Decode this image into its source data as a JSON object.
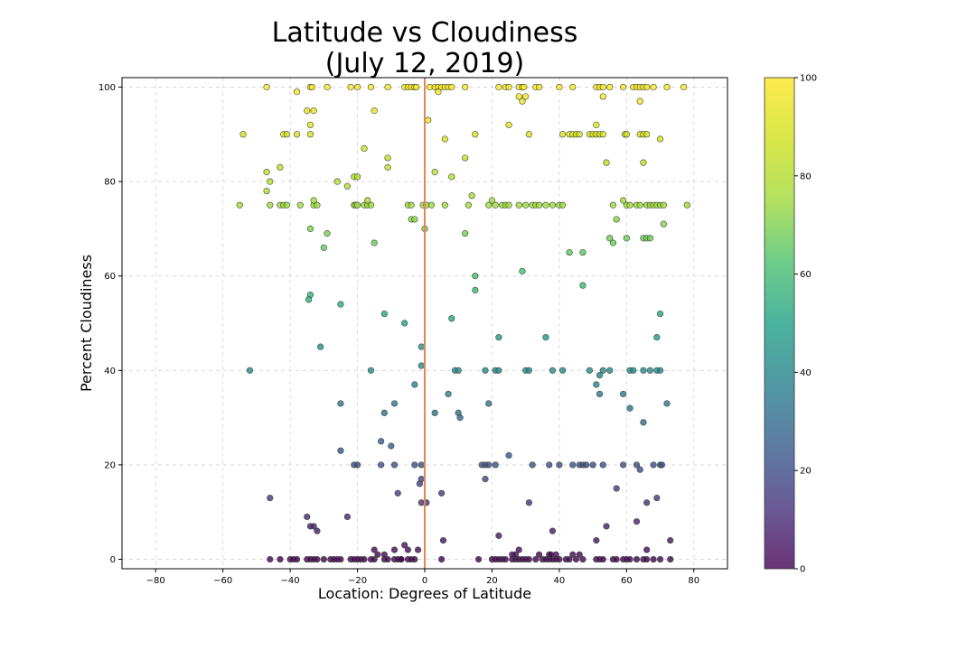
{
  "chart_data": {
    "type": "scatter",
    "title": "Latitude vs Cloudiness",
    "subtitle": "(July 12, 2019)",
    "xlabel": "Location: Degrees of Latitude",
    "ylabel": "Percent Cloudiness",
    "xlim": [
      -90,
      90
    ],
    "ylim": [
      -2,
      102
    ],
    "x_ticks": [
      "−80",
      "−60",
      "−40",
      "−20",
      "0",
      "20",
      "40",
      "60",
      "80"
    ],
    "y_ticks": [
      "0",
      "20",
      "40",
      "60",
      "80",
      "100"
    ],
    "grid": true,
    "reference_line": {
      "x": 0,
      "color": "#e8845a"
    },
    "colormap": "viridis",
    "colorbar": {
      "range": [
        0,
        100
      ],
      "ticks": [
        "0",
        "20",
        "40",
        "60",
        "80",
        "100"
      ],
      "position": "right"
    },
    "points": [
      [
        -47,
        100
      ],
      [
        -38,
        99
      ],
      [
        -34,
        100
      ],
      [
        -33.5,
        100
      ],
      [
        -29,
        100
      ],
      [
        -22,
        100
      ],
      [
        -20,
        100
      ],
      [
        -16,
        100
      ],
      [
        -11,
        100
      ],
      [
        -6,
        100
      ],
      [
        -5,
        100
      ],
      [
        -4,
        100
      ],
      [
        -3,
        100
      ],
      [
        -2.5,
        100
      ],
      [
        1.5,
        100
      ],
      [
        3,
        100
      ],
      [
        4,
        100
      ],
      [
        5,
        100
      ],
      [
        6,
        100
      ],
      [
        7,
        100
      ],
      [
        8,
        100
      ],
      [
        12,
        100
      ],
      [
        22,
        100
      ],
      [
        24,
        100
      ],
      [
        25,
        100
      ],
      [
        28,
        100
      ],
      [
        29,
        100
      ],
      [
        29.5,
        100
      ],
      [
        33,
        100
      ],
      [
        34,
        100
      ],
      [
        40,
        100
      ],
      [
        44,
        100
      ],
      [
        51,
        100
      ],
      [
        52,
        100
      ],
      [
        53,
        100
      ],
      [
        55,
        100
      ],
      [
        59,
        100
      ],
      [
        62,
        100
      ],
      [
        63,
        100
      ],
      [
        64,
        100
      ],
      [
        65,
        100
      ],
      [
        66,
        100
      ],
      [
        68,
        100
      ],
      [
        72,
        100
      ],
      [
        77,
        100
      ],
      [
        4,
        99
      ],
      [
        28,
        98
      ],
      [
        30,
        98
      ],
      [
        29,
        97
      ],
      [
        53,
        98
      ],
      [
        64,
        97
      ],
      [
        -35,
        95
      ],
      [
        -33,
        95
      ],
      [
        -15,
        95
      ],
      [
        1,
        93
      ],
      [
        -34,
        92
      ],
      [
        25,
        92
      ],
      [
        51,
        92
      ],
      [
        -54,
        90
      ],
      [
        -42,
        90
      ],
      [
        -41,
        90
      ],
      [
        -38,
        90
      ],
      [
        -34,
        90
      ],
      [
        6,
        89
      ],
      [
        15,
        90
      ],
      [
        31,
        90
      ],
      [
        41,
        90
      ],
      [
        43,
        90
      ],
      [
        44,
        90
      ],
      [
        45,
        90
      ],
      [
        46,
        90
      ],
      [
        49,
        90
      ],
      [
        50,
        90
      ],
      [
        51,
        90
      ],
      [
        52,
        90
      ],
      [
        53,
        90
      ],
      [
        59.5,
        90
      ],
      [
        60,
        90
      ],
      [
        64,
        90
      ],
      [
        65,
        90
      ],
      [
        66,
        90
      ],
      [
        70,
        89
      ],
      [
        -18,
        87
      ],
      [
        -11,
        85
      ],
      [
        12,
        85
      ],
      [
        -11,
        83
      ],
      [
        -43,
        83
      ],
      [
        54,
        84
      ],
      [
        65,
        84
      ],
      [
        -47,
        82
      ],
      [
        3,
        82
      ],
      [
        8,
        81
      ],
      [
        -21,
        81
      ],
      [
        -20,
        81
      ],
      [
        -46,
        80
      ],
      [
        -26,
        80
      ],
      [
        -23,
        79
      ],
      [
        -47,
        78
      ],
      [
        14,
        77
      ],
      [
        -55,
        75
      ],
      [
        -46,
        75
      ],
      [
        -43,
        75
      ],
      [
        -42,
        75
      ],
      [
        -41,
        75
      ],
      [
        -37,
        75
      ],
      [
        -33,
        75
      ],
      [
        -32,
        75
      ],
      [
        -21,
        75
      ],
      [
        -20.5,
        75
      ],
      [
        -20,
        75
      ],
      [
        -18,
        75
      ],
      [
        -17,
        75
      ],
      [
        -16,
        75
      ],
      [
        -5,
        75
      ],
      [
        -4,
        75
      ],
      [
        -0.5,
        75
      ],
      [
        0.5,
        75
      ],
      [
        2,
        75
      ],
      [
        6,
        75
      ],
      [
        13,
        75
      ],
      [
        19,
        75
      ],
      [
        21,
        75
      ],
      [
        23,
        75
      ],
      [
        24,
        75
      ],
      [
        25,
        75
      ],
      [
        28,
        75
      ],
      [
        30,
        75
      ],
      [
        32,
        75
      ],
      [
        33,
        75
      ],
      [
        34,
        75
      ],
      [
        36,
        75
      ],
      [
        38,
        75
      ],
      [
        40,
        75
      ],
      [
        41,
        75
      ],
      [
        56,
        75
      ],
      [
        60,
        75
      ],
      [
        61,
        75
      ],
      [
        63,
        75
      ],
      [
        64,
        75
      ],
      [
        66,
        75
      ],
      [
        67,
        75
      ],
      [
        68,
        75
      ],
      [
        69,
        75
      ],
      [
        70,
        75
      ],
      [
        71,
        75
      ],
      [
        78,
        75
      ],
      [
        -33,
        76
      ],
      [
        -17,
        76
      ],
      [
        20,
        76
      ],
      [
        59,
        76
      ],
      [
        -4,
        72
      ],
      [
        -3,
        72
      ],
      [
        57,
        72
      ],
      [
        71,
        71
      ],
      [
        -34,
        70
      ],
      [
        0,
        70
      ],
      [
        12,
        69
      ],
      [
        -29,
        69
      ],
      [
        65,
        68
      ],
      [
        66,
        68
      ],
      [
        67,
        68
      ],
      [
        55,
        68
      ],
      [
        56,
        67
      ],
      [
        -15,
        67
      ],
      [
        -30,
        66
      ],
      [
        43,
        65
      ],
      [
        47,
        65
      ],
      [
        60,
        68
      ],
      [
        29,
        61
      ],
      [
        15,
        60
      ],
      [
        47,
        58
      ],
      [
        15,
        57
      ],
      [
        -34,
        56
      ],
      [
        -34.5,
        55
      ],
      [
        -25,
        54
      ],
      [
        -12,
        52
      ],
      [
        70,
        52
      ],
      [
        -6,
        50
      ],
      [
        8,
        51
      ],
      [
        22,
        47
      ],
      [
        36,
        47
      ],
      [
        69,
        47
      ],
      [
        -31,
        45
      ],
      [
        -1,
        45
      ],
      [
        -52,
        40
      ],
      [
        -16,
        40
      ],
      [
        -1,
        41
      ],
      [
        9,
        40
      ],
      [
        10,
        40
      ],
      [
        18,
        40
      ],
      [
        21,
        40
      ],
      [
        22,
        40
      ],
      [
        30,
        40
      ],
      [
        31,
        40
      ],
      [
        38,
        40
      ],
      [
        41,
        40
      ],
      [
        49,
        40
      ],
      [
        53,
        40
      ],
      [
        55,
        40
      ],
      [
        61,
        40
      ],
      [
        62,
        40
      ],
      [
        65,
        40
      ],
      [
        67,
        40
      ],
      [
        69,
        40
      ],
      [
        70,
        40
      ],
      [
        52,
        39
      ],
      [
        51,
        37
      ],
      [
        -3,
        37
      ],
      [
        7,
        35
      ],
      [
        52,
        35
      ],
      [
        59,
        35
      ],
      [
        -25,
        33
      ],
      [
        -9,
        33
      ],
      [
        19,
        33
      ],
      [
        72,
        33
      ],
      [
        61,
        32
      ],
      [
        -12,
        31
      ],
      [
        3,
        31
      ],
      [
        10,
        31
      ],
      [
        10.5,
        30
      ],
      [
        65,
        29
      ],
      [
        -10,
        24
      ],
      [
        -13,
        25
      ],
      [
        -25,
        23
      ],
      [
        -21,
        20
      ],
      [
        -20,
        20
      ],
      [
        -13,
        20
      ],
      [
        -9,
        20
      ],
      [
        -3,
        20
      ],
      [
        -1,
        20
      ],
      [
        17,
        20
      ],
      [
        18,
        20
      ],
      [
        19,
        20
      ],
      [
        21,
        20
      ],
      [
        32,
        20
      ],
      [
        37,
        20
      ],
      [
        40,
        20
      ],
      [
        44,
        20
      ],
      [
        46,
        20
      ],
      [
        47,
        20
      ],
      [
        48,
        20
      ],
      [
        50,
        20
      ],
      [
        53,
        20
      ],
      [
        59,
        20
      ],
      [
        63,
        20
      ],
      [
        68,
        20
      ],
      [
        70,
        20
      ],
      [
        70.5,
        20
      ],
      [
        64,
        19
      ],
      [
        25,
        22
      ],
      [
        18,
        17
      ],
      [
        -1,
        17
      ],
      [
        -1.5,
        16
      ],
      [
        57,
        15
      ],
      [
        -8,
        14
      ],
      [
        5,
        14
      ],
      [
        -46,
        13
      ],
      [
        69,
        13
      ],
      [
        -1,
        12
      ],
      [
        0.5,
        12
      ],
      [
        31,
        12
      ],
      [
        66,
        12
      ],
      [
        -35,
        9
      ],
      [
        -23,
        9
      ],
      [
        63,
        8
      ],
      [
        -34,
        7
      ],
      [
        -33,
        7
      ],
      [
        54,
        7
      ],
      [
        -32,
        6
      ],
      [
        22,
        5
      ],
      [
        5.5,
        4
      ],
      [
        51,
        4
      ],
      [
        73,
        4
      ],
      [
        -5,
        2
      ],
      [
        -2,
        2
      ],
      [
        -15,
        2
      ],
      [
        28,
        2
      ],
      [
        66,
        2
      ],
      [
        -6,
        3
      ],
      [
        38,
        6
      ],
      [
        -46,
        0
      ],
      [
        -43,
        0
      ],
      [
        -40,
        0
      ],
      [
        -39,
        0
      ],
      [
        -38,
        0
      ],
      [
        -35,
        0
      ],
      [
        -34,
        0
      ],
      [
        -33,
        0
      ],
      [
        -32,
        0
      ],
      [
        -30,
        0
      ],
      [
        -28,
        0
      ],
      [
        -27,
        0
      ],
      [
        -26,
        0
      ],
      [
        -25,
        0
      ],
      [
        -22,
        0
      ],
      [
        -21,
        0
      ],
      [
        -20,
        0
      ],
      [
        -19,
        0
      ],
      [
        -18,
        0
      ],
      [
        -16,
        0
      ],
      [
        -15,
        0
      ],
      [
        -12,
        0
      ],
      [
        -11,
        0
      ],
      [
        -9,
        0
      ],
      [
        -8,
        0
      ],
      [
        -7,
        0
      ],
      [
        -5,
        0
      ],
      [
        -4,
        0
      ],
      [
        -3,
        0
      ],
      [
        5,
        0
      ],
      [
        16,
        0
      ],
      [
        20,
        0
      ],
      [
        21,
        0
      ],
      [
        22,
        0
      ],
      [
        23,
        0
      ],
      [
        24,
        0
      ],
      [
        26,
        0
      ],
      [
        27,
        0
      ],
      [
        28,
        0
      ],
      [
        29,
        0
      ],
      [
        30,
        0
      ],
      [
        31,
        0
      ],
      [
        33,
        0
      ],
      [
        35,
        0
      ],
      [
        36,
        0
      ],
      [
        37,
        0
      ],
      [
        38,
        0
      ],
      [
        39,
        0
      ],
      [
        40,
        0
      ],
      [
        42,
        0
      ],
      [
        43,
        0
      ],
      [
        45,
        0
      ],
      [
        47,
        0
      ],
      [
        51,
        0
      ],
      [
        52,
        0
      ],
      [
        53,
        0
      ],
      [
        56,
        0
      ],
      [
        57,
        0
      ],
      [
        59,
        0
      ],
      [
        60,
        0
      ],
      [
        61,
        0
      ],
      [
        63,
        0
      ],
      [
        65,
        0
      ],
      [
        66,
        0
      ],
      [
        68,
        0
      ],
      [
        70,
        0
      ],
      [
        73,
        0
      ],
      [
        -14,
        1
      ],
      [
        -12,
        1
      ],
      [
        26,
        1
      ],
      [
        27,
        1
      ],
      [
        34,
        1
      ],
      [
        37,
        1
      ],
      [
        37.5,
        1
      ],
      [
        39,
        1
      ],
      [
        44,
        1
      ],
      [
        46,
        1
      ],
      [
        -9,
        2
      ],
      [
        -7,
        0
      ]
    ]
  }
}
